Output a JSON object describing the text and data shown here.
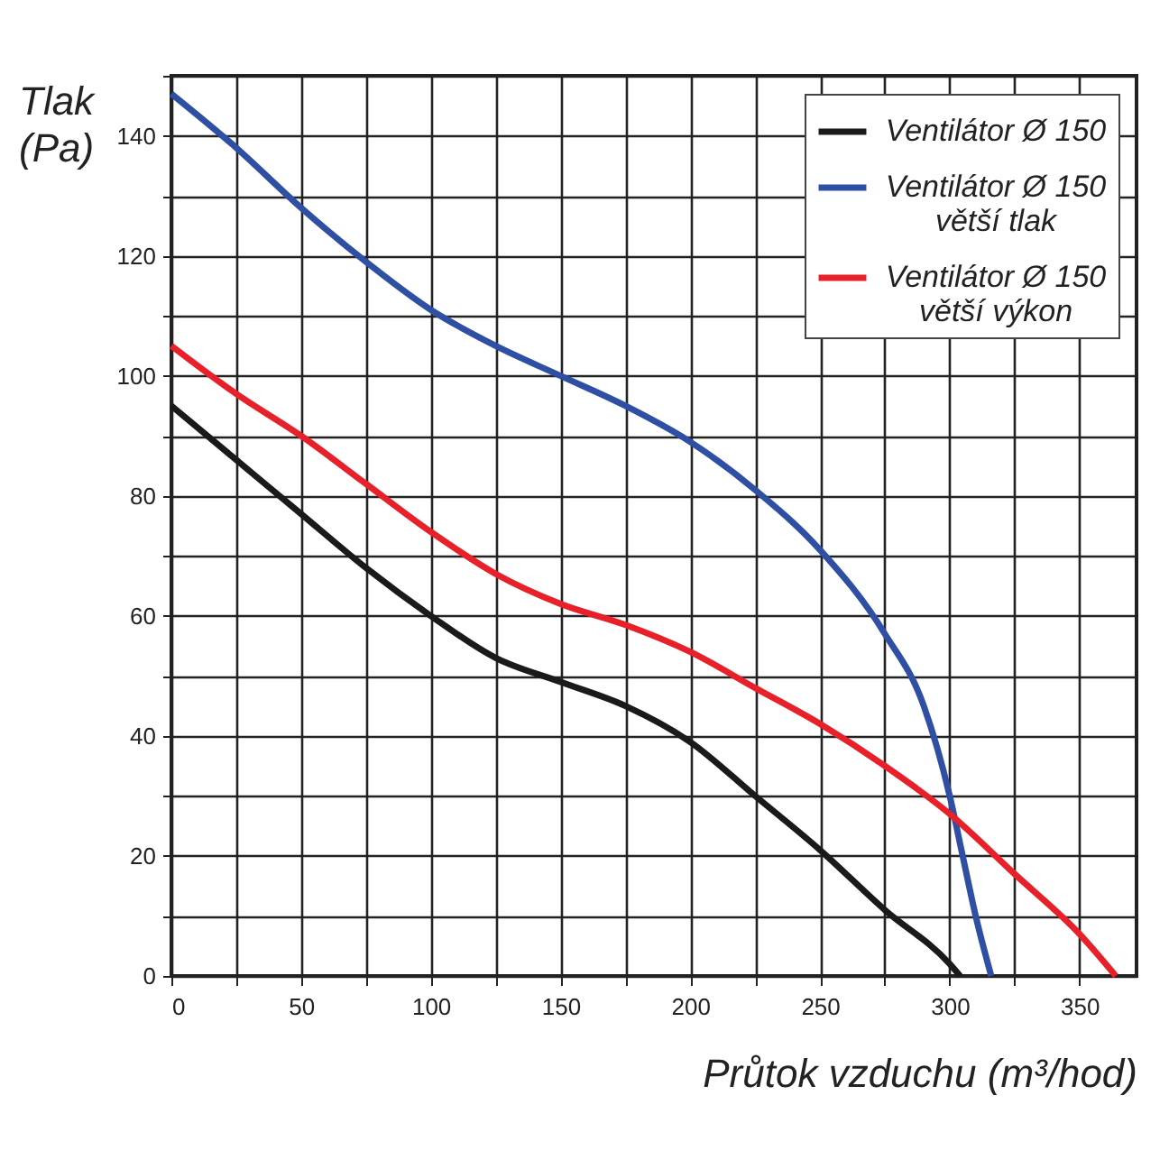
{
  "chart_data": {
    "type": "line",
    "xlabel": "Průtok vzduchu (m³/hod)",
    "ylabel": "Tlak\n(Pa)",
    "xlim": [
      0,
      372
    ],
    "ylim": [
      0,
      150
    ],
    "xticks": [
      0,
      {
        "value": 25,
        "label": null
      },
      50,
      {
        "value": 75,
        "label": null
      },
      100,
      {
        "value": 125,
        "label": null
      },
      150,
      {
        "value": 175,
        "label": null
      },
      200,
      {
        "value": 225,
        "label": null
      },
      250,
      {
        "value": 275,
        "label": null
      },
      300,
      {
        "value": 325,
        "label": null
      },
      350
    ],
    "yticks": [
      0,
      {
        "value": 10,
        "label": null
      },
      20,
      {
        "value": 30,
        "label": null
      },
      40,
      {
        "value": 50,
        "label": null
      },
      60,
      {
        "value": 70,
        "label": null
      },
      80,
      {
        "value": 90,
        "label": null
      },
      100,
      {
        "value": 110,
        "label": null
      },
      120,
      {
        "value": 130,
        "label": null
      },
      140,
      {
        "value": 150,
        "label": null
      }
    ],
    "grid": true,
    "legend": "top right",
    "line_style": "solid",
    "series": [
      {
        "name": "Ventilátor Ø 150",
        "color": "#1a1a1a",
        "x": [
          0,
          25,
          50,
          75,
          100,
          125,
          150,
          175,
          200,
          225,
          250,
          275,
          300,
          304
        ],
        "values": [
          95,
          86,
          77,
          68,
          60,
          53,
          49,
          45,
          39,
          30,
          21,
          11,
          2,
          0
        ]
      },
      {
        "name": "Ventilátor Ø 150\nvětší tlak",
        "color": "#2e4fa3",
        "x": [
          0,
          25,
          50,
          75,
          100,
          125,
          150,
          175,
          200,
          225,
          250,
          275,
          290,
          300,
          305,
          310,
          316
        ],
        "values": [
          147,
          138,
          128,
          119,
          111,
          105,
          100,
          95,
          89,
          81,
          71,
          57,
          45,
          30,
          20,
          10,
          0
        ]
      },
      {
        "name": "Ventilátor Ø 150\nvětší výkon",
        "color": "#e8202a",
        "x": [
          0,
          25,
          50,
          75,
          100,
          125,
          150,
          175,
          200,
          225,
          250,
          275,
          300,
          325,
          350,
          364
        ],
        "values": [
          105,
          97,
          90,
          82,
          74,
          67,
          62,
          58.5,
          54,
          48,
          42,
          35,
          27,
          17,
          7,
          0
        ]
      }
    ]
  }
}
